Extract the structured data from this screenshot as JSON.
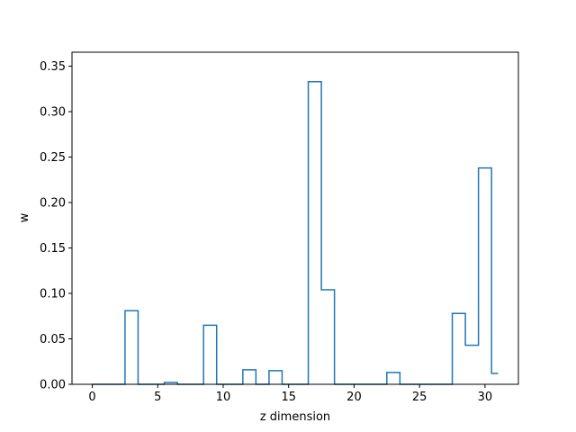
{
  "chart_data": {
    "type": "line",
    "style": "step-mid",
    "xlabel": "z dimension",
    "ylabel": "w",
    "xlim": [
      -1.55,
      32.55
    ],
    "ylim": [
      0,
      0.3654
    ],
    "x_ticks": [
      0,
      5,
      10,
      15,
      20,
      25,
      30
    ],
    "y_ticks": [
      0.0,
      0.05,
      0.1,
      0.15,
      0.2,
      0.25,
      0.3,
      0.35
    ],
    "grid": false,
    "series": [
      {
        "color": "#1f77b4",
        "x": [
          0,
          1,
          2,
          3,
          4,
          5,
          6,
          7,
          8,
          9,
          10,
          11,
          12,
          13,
          14,
          15,
          16,
          17,
          18,
          19,
          20,
          21,
          22,
          23,
          24,
          25,
          26,
          27,
          28,
          29,
          30,
          31
        ],
        "values": [
          0,
          0,
          0,
          0.081,
          0,
          0,
          0.002,
          0,
          0,
          0.065,
          0,
          0,
          0.016,
          0,
          0.015,
          0,
          0,
          0.333,
          0.104,
          0,
          0,
          0,
          0,
          0.013,
          0,
          0,
          0,
          0,
          0.078,
          0.043,
          0.238,
          0.012
        ]
      }
    ]
  }
}
